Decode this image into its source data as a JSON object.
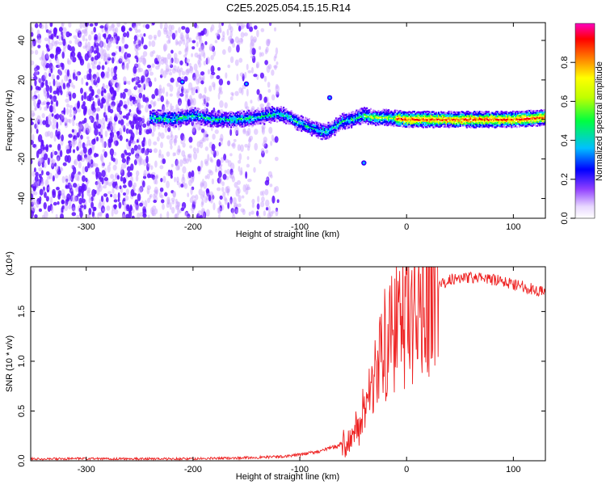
{
  "title": "C2E5.2025.054.15.15.R14",
  "chart_data": [
    {
      "type": "heatmap",
      "xlabel": "Height of straight line (km)",
      "ylabel": "Frequency (Hz)",
      "xlim": [
        -352,
        130
      ],
      "ylim": [
        -50,
        49
      ],
      "x_ticks": [
        -300,
        -200,
        -100,
        0,
        100
      ],
      "y_ticks": [
        -40,
        -20,
        0,
        20,
        40
      ],
      "colorbar": {
        "label": "Normalized spectral amplitude",
        "range": [
          0,
          1
        ],
        "ticks": [
          "0.0",
          "0.2",
          "0.4",
          "0.6",
          "0.8"
        ],
        "colors": [
          "#ffffff",
          "#c080ff",
          "#6000ff",
          "#0000ff",
          "#00c0ff",
          "#00ff40",
          "#c0ff00",
          "#ffff00",
          "#ff8000",
          "#ff0000",
          "#ff00c0"
        ]
      },
      "ridge": {
        "name": "dominant frequency track",
        "x": [
          -240,
          -220,
          -200,
          -180,
          -160,
          -140,
          -130,
          -120,
          -110,
          -100,
          -90,
          -80,
          -75,
          -70,
          -60,
          -50,
          -40,
          -30,
          -20,
          0,
          20,
          50,
          80,
          100,
          130
        ],
        "y": [
          1,
          0,
          2,
          0,
          0,
          1,
          2,
          3,
          1,
          -2,
          -4,
          -6,
          -6,
          -5,
          -1,
          0,
          2,
          1,
          1,
          0,
          0,
          0,
          0,
          0,
          1
        ]
      },
      "isolated_features": [
        {
          "x": -210,
          "y": 19
        },
        {
          "x": -150,
          "y": 18
        },
        {
          "x": -72,
          "y": 11
        },
        {
          "x": -40,
          "y": -22
        }
      ]
    },
    {
      "type": "line",
      "xlabel": "Height of straight line (km)",
      "ylabel": "SNR (10 * v/v)",
      "y_multiplier": "(x10⁴)",
      "xlim": [
        -352,
        130
      ],
      "ylim": [
        0,
        1.95
      ],
      "x_ticks": [
        -300,
        -200,
        -100,
        0,
        100
      ],
      "y_ticks": [
        "0.0",
        "0.5",
        "1.0",
        "1.5"
      ],
      "line_color": "#ee2222",
      "series": [
        {
          "x": [
            -352,
            -300,
            -250,
            -200,
            -150,
            -120,
            -100,
            -90,
            -80,
            -70,
            -60,
            -50,
            -45,
            -40,
            -35,
            -30,
            -25,
            -20,
            -15,
            -10,
            -5,
            0,
            5,
            10,
            15,
            20,
            25,
            30,
            40,
            50,
            60,
            70,
            80,
            90,
            100,
            110,
            120,
            130
          ],
          "y": [
            0.02,
            0.02,
            0.02,
            0.02,
            0.03,
            0.04,
            0.06,
            0.08,
            0.1,
            0.13,
            0.17,
            0.25,
            0.35,
            0.5,
            0.7,
            0.95,
            1.05,
            1.15,
            1.25,
            1.35,
            1.4,
            1.4,
            1.5,
            1.55,
            1.6,
            1.65,
            1.7,
            1.75,
            1.82,
            1.84,
            1.84,
            1.83,
            1.82,
            1.8,
            1.78,
            1.75,
            1.72,
            1.69
          ]
        }
      ]
    }
  ]
}
